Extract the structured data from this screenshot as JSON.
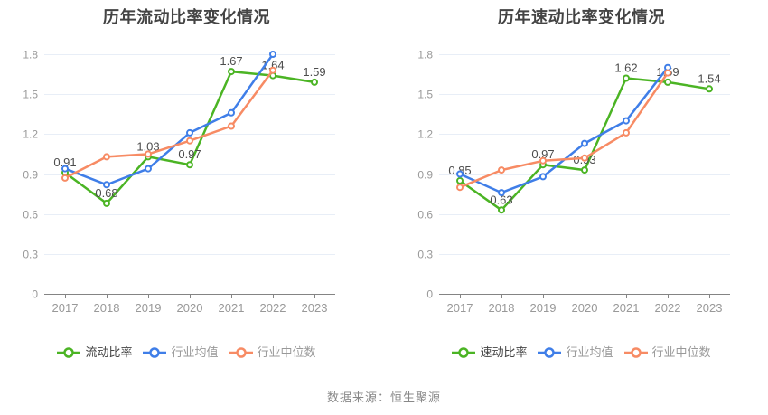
{
  "source_note": "数据来源：恒生聚源",
  "theme": {
    "background": "#ffffff",
    "title_color": "#444444",
    "axis_label_color": "#999999",
    "axis_line_color": "#848484",
    "grid_color": "#e8eef7",
    "data_label_color": "#4d4d4d",
    "legend_active_text_color": "#444444",
    "legend_text_color": "#999999",
    "source_text_color": "#888888",
    "series_green": "#4bb424",
    "series_blue": "#3f7ee8",
    "series_orange": "#f78b64"
  },
  "chart_data": [
    {
      "type": "line",
      "title": "历年流动比率变化情况",
      "categories": [
        "2017",
        "2018",
        "2019",
        "2020",
        "2021",
        "2022",
        "2023"
      ],
      "ylim": [
        0,
        1.8
      ],
      "yticks": [
        "0",
        "0.3",
        "0.6",
        "0.9",
        "1.2",
        "1.5",
        "1.8"
      ],
      "grid": true,
      "legend_position": "bottom",
      "series": [
        {
          "name": "流动比率",
          "color": "#4bb424",
          "values": [
            0.91,
            0.68,
            1.03,
            0.97,
            1.67,
            1.64,
            1.59
          ],
          "point_labels": [
            "0.91",
            "0.68",
            "1.03",
            "0.97",
            "1.67",
            "1.64",
            "1.59"
          ]
        },
        {
          "name": "行业均值",
          "color": "#3f7ee8",
          "values": [
            0.94,
            0.82,
            0.94,
            1.21,
            1.36,
            1.8,
            null
          ]
        },
        {
          "name": "行业中位数",
          "color": "#f78b64",
          "values": [
            0.87,
            1.03,
            1.05,
            1.15,
            1.26,
            1.68,
            null
          ]
        }
      ]
    },
    {
      "type": "line",
      "title": "历年速动比率变化情况",
      "categories": [
        "2017",
        "2018",
        "2019",
        "2020",
        "2021",
        "2022",
        "2023"
      ],
      "ylim": [
        0,
        1.8
      ],
      "yticks": [
        "0",
        "0.3",
        "0.6",
        "0.9",
        "1.2",
        "1.5",
        "1.8"
      ],
      "grid": true,
      "legend_position": "bottom",
      "series": [
        {
          "name": "速动比率",
          "color": "#4bb424",
          "values": [
            0.85,
            0.63,
            0.97,
            0.93,
            1.62,
            1.59,
            1.54
          ],
          "point_labels": [
            "0.85",
            "0.63",
            "0.97",
            "0.93",
            "1.62",
            "1.59",
            "1.54"
          ]
        },
        {
          "name": "行业均值",
          "color": "#3f7ee8",
          "values": [
            0.9,
            0.76,
            0.88,
            1.13,
            1.3,
            1.7,
            null
          ]
        },
        {
          "name": "行业中位数",
          "color": "#f78b64",
          "values": [
            0.8,
            0.93,
            1.0,
            1.02,
            1.21,
            1.66,
            null
          ]
        }
      ]
    }
  ]
}
